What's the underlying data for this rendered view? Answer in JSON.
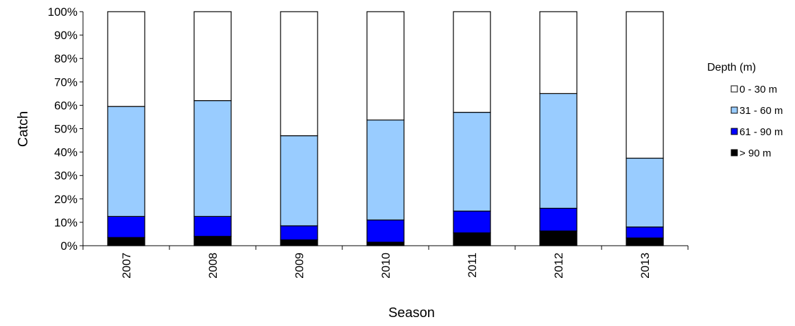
{
  "chart_data": {
    "type": "bar",
    "stacked": true,
    "percent": true,
    "xlabel": "Season",
    "ylabel": "Catch",
    "ylim": [
      0,
      100
    ],
    "yticks": [
      "0%",
      "10%",
      "20%",
      "30%",
      "40%",
      "50%",
      "60%",
      "70%",
      "80%",
      "90%",
      "100%"
    ],
    "categories": [
      "2007",
      "2008",
      "2009",
      "2010",
      "2011",
      "2012",
      "2013"
    ],
    "series": [
      {
        "name": "> 90 m",
        "color": "#000000",
        "values": [
          3.5,
          4,
          2.5,
          1.5,
          5.5,
          6.3,
          3.3
        ]
      },
      {
        "name": "61 - 90 m",
        "color": "#0000ff",
        "values": [
          9,
          8.5,
          6,
          9.5,
          9.3,
          9.7,
          4.7
        ]
      },
      {
        "name": "31 - 60 m",
        "color": "#99ccff",
        "values": [
          47,
          49.5,
          38.5,
          42.7,
          42.2,
          49,
          29.4
        ]
      },
      {
        "name": "0 - 30 m",
        "color": "#ffffff",
        "values": [
          40.5,
          38,
          53,
          46.3,
          43,
          35,
          62.6
        ]
      }
    ],
    "legend": {
      "title": "Depth  (m)",
      "position": "right",
      "order": [
        "0 - 30 m",
        "31 - 60 m",
        "61 - 90 m",
        "> 90 m"
      ]
    },
    "grid": false
  }
}
